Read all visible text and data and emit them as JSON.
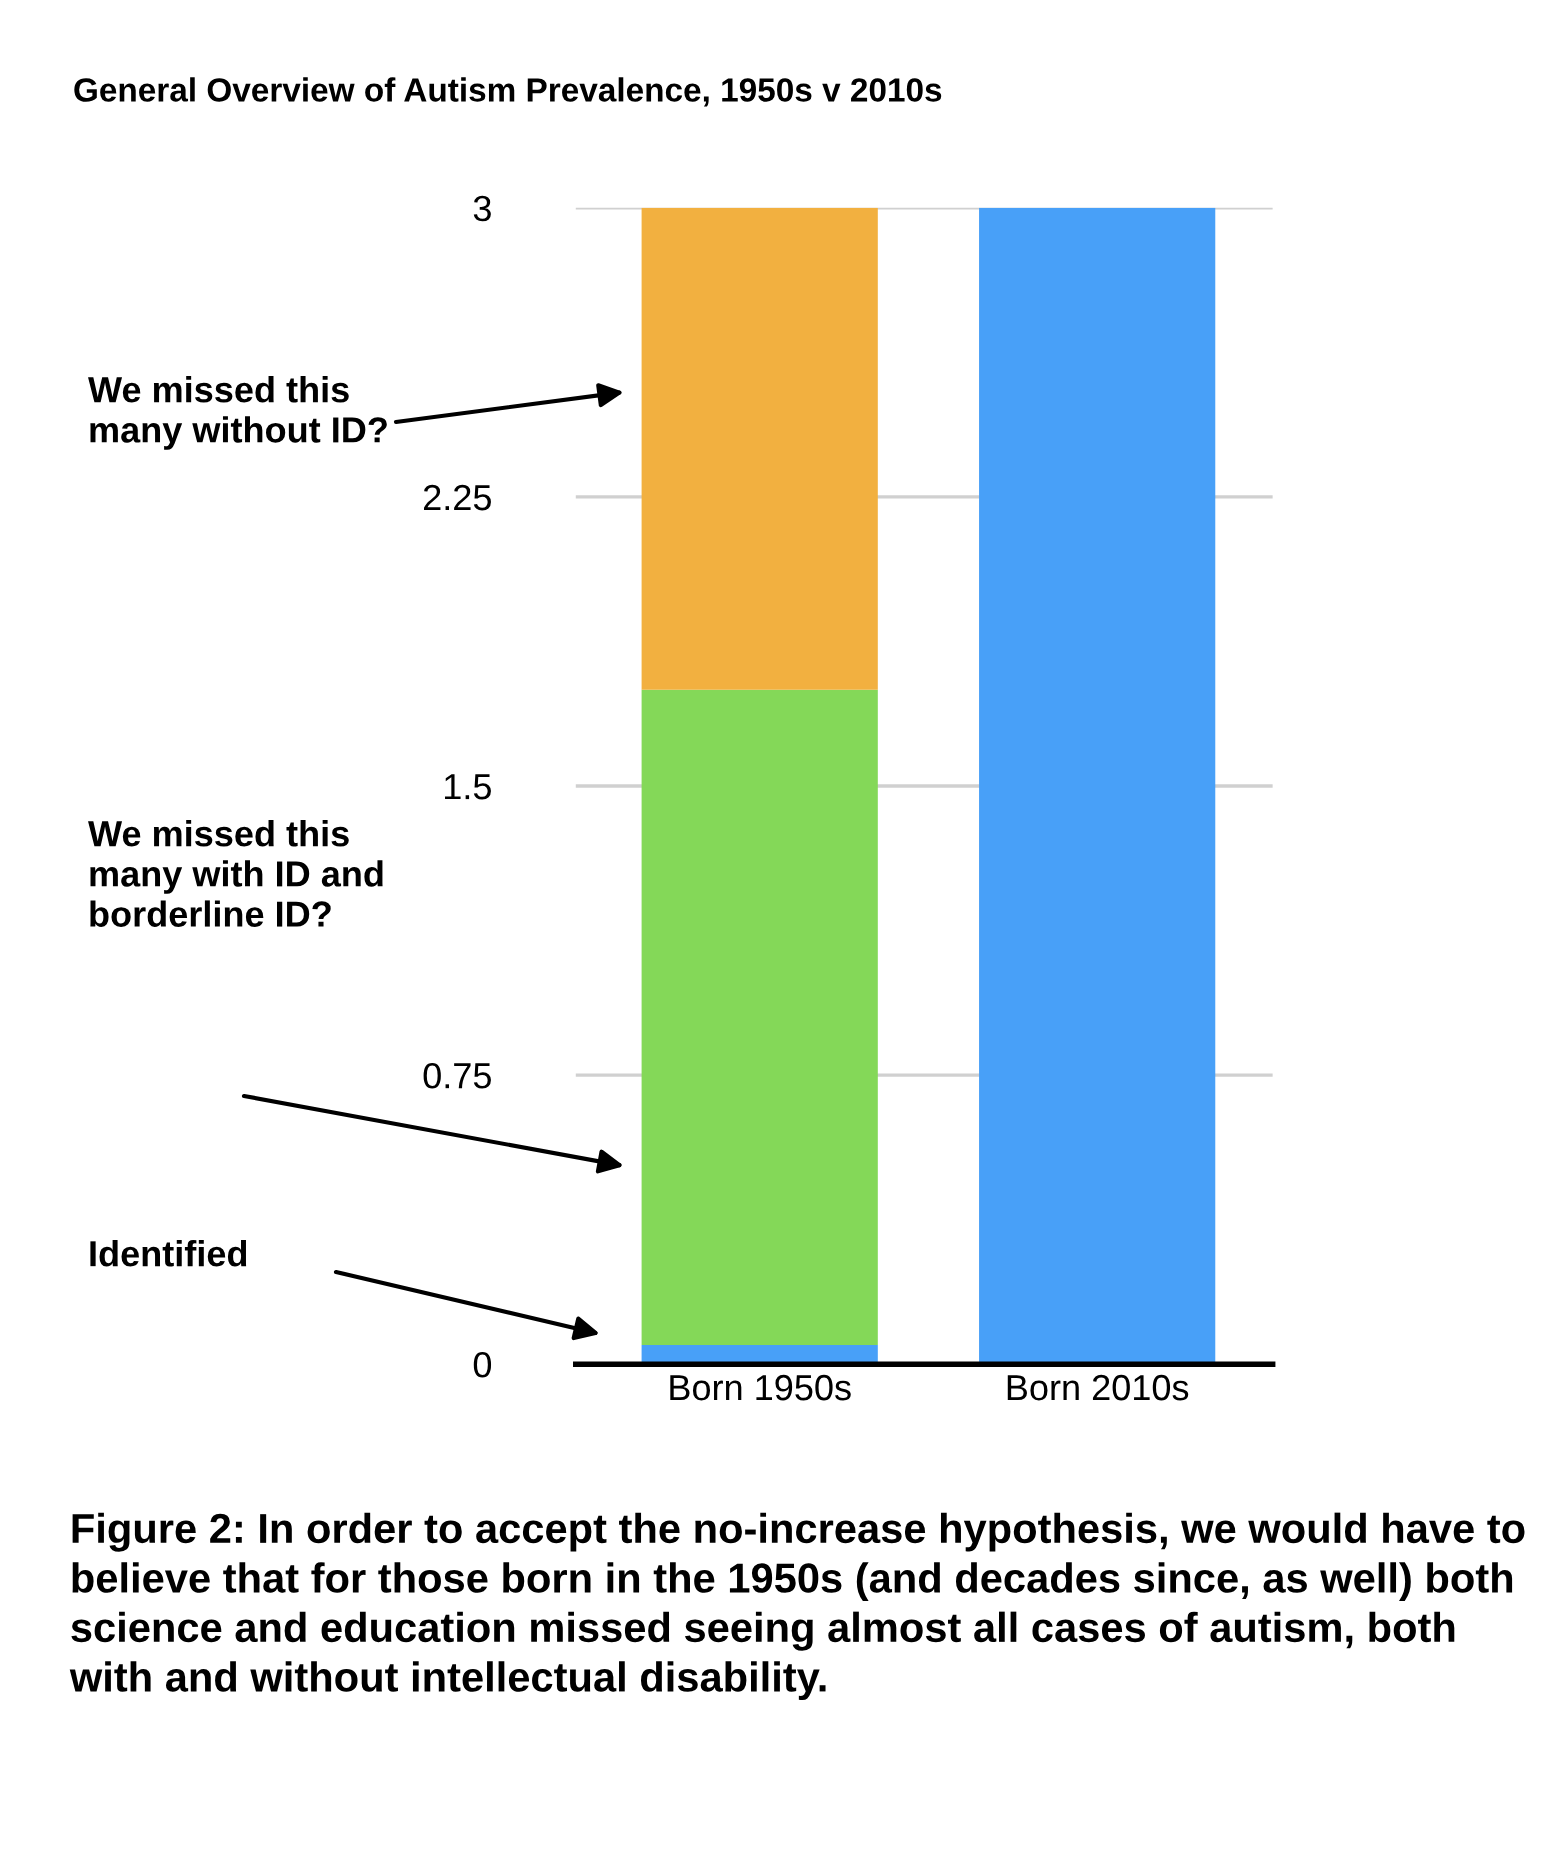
{
  "chart_data": {
    "type": "bar",
    "title": "General Overview of Autism Prevalence, 1950s v 2010s",
    "categories": [
      "Born 1950s",
      "Born 2010s"
    ],
    "stacked": true,
    "series": [
      {
        "color": "#48a0f8",
        "values": [
          0.05,
          3
        ]
      },
      {
        "color": "#84d858",
        "values": [
          1.7,
          0
        ]
      },
      {
        "color": "#f2b040",
        "values": [
          1.25,
          0
        ]
      }
    ],
    "ylim": [
      0,
      3
    ],
    "yticks": [
      0,
      0.75,
      1.5,
      2.25,
      3
    ],
    "grid": "y",
    "annotations": [
      "We missed this many without ID?",
      "We missed this many with ID and borderline ID?",
      "Identified",
      "Figure 2: In order to accept the no-increase hypothesis, we would have to believe that for those born in the 1950s (and decades since, as well) both science and education missed seeing almost all cases of autism, both with and without intellectual disability."
    ]
  }
}
